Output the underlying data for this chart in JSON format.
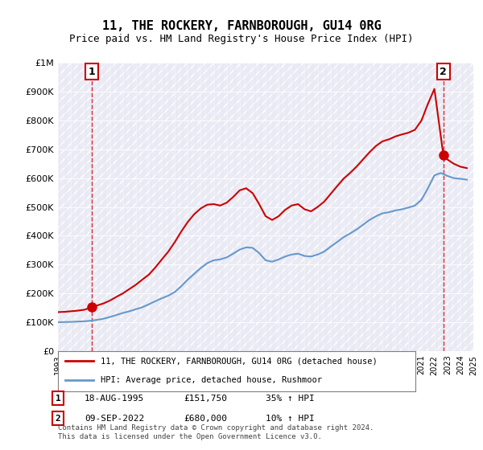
{
  "title": "11, THE ROCKERY, FARNBOROUGH, GU14 0RG",
  "subtitle": "Price paid vs. HM Land Registry's House Price Index (HPI)",
  "legend_line1": "11, THE ROCKERY, FARNBOROUGH, GU14 0RG (detached house)",
  "legend_line2": "HPI: Average price, detached house, Rushmoor",
  "transaction1_label": "1",
  "transaction1_date": "18-AUG-1995",
  "transaction1_price": 151750,
  "transaction1_hpi": "35% ↑ HPI",
  "transaction1_year": 1995.625,
  "transaction2_label": "2",
  "transaction2_date": "09-SEP-2022",
  "transaction2_price": 680000,
  "transaction2_hpi": "10% ↑ HPI",
  "transaction2_year": 2022.69,
  "footer": "Contains HM Land Registry data © Crown copyright and database right 2024.\nThis data is licensed under the Open Government Licence v3.0.",
  "price_color": "#cc0000",
  "hpi_color": "#6699cc",
  "vline_color": "#cc0000",
  "bg_hatch_color": "#e8e8f0",
  "ylim_max": 1000000,
  "xlim_min": 1993,
  "xlim_max": 2025,
  "hpi_data_x": [
    1993,
    1993.5,
    1994,
    1994.5,
    1995,
    1995.5,
    1996,
    1996.5,
    1997,
    1997.5,
    1998,
    1998.5,
    1999,
    1999.5,
    2000,
    2000.5,
    2001,
    2001.5,
    2002,
    2002.5,
    2003,
    2003.5,
    2004,
    2004.5,
    2005,
    2005.5,
    2006,
    2006.5,
    2007,
    2007.5,
    2008,
    2008.5,
    2009,
    2009.5,
    2010,
    2010.5,
    2011,
    2011.5,
    2012,
    2012.5,
    2013,
    2013.5,
    2014,
    2014.5,
    2015,
    2015.5,
    2016,
    2016.5,
    2017,
    2017.5,
    2018,
    2018.5,
    2019,
    2019.5,
    2020,
    2020.5,
    2021,
    2021.5,
    2022,
    2022.5,
    2023,
    2023.5,
    2024,
    2024.5
  ],
  "hpi_data_y": [
    100000,
    100500,
    101000,
    102000,
    103000,
    105000,
    108000,
    112000,
    118000,
    125000,
    132000,
    138000,
    145000,
    152000,
    162000,
    173000,
    183000,
    192000,
    205000,
    225000,
    248000,
    268000,
    288000,
    305000,
    315000,
    318000,
    325000,
    338000,
    352000,
    360000,
    358000,
    340000,
    315000,
    310000,
    318000,
    328000,
    335000,
    338000,
    330000,
    328000,
    335000,
    345000,
    362000,
    378000,
    395000,
    408000,
    422000,
    438000,
    455000,
    468000,
    478000,
    482000,
    488000,
    492000,
    498000,
    505000,
    525000,
    565000,
    610000,
    618000,
    608000,
    600000,
    598000,
    595000
  ],
  "price_data_x": [
    1993,
    1993.5,
    1994,
    1994.5,
    1995,
    1995.625,
    1996,
    1996.5,
    1997,
    1997.5,
    1998,
    1998.5,
    1999,
    1999.5,
    2000,
    2000.5,
    2001,
    2001.5,
    2002,
    2002.5,
    2003,
    2003.5,
    2004,
    2004.5,
    2005,
    2005.5,
    2006,
    2006.5,
    2007,
    2007.5,
    2008,
    2008.5,
    2009,
    2009.5,
    2010,
    2010.5,
    2011,
    2011.5,
    2012,
    2012.5,
    2013,
    2013.5,
    2014,
    2014.5,
    2015,
    2015.5,
    2016,
    2016.5,
    2017,
    2017.5,
    2018,
    2018.5,
    2019,
    2019.5,
    2020,
    2020.5,
    2021,
    2021.5,
    2022,
    2022.69,
    2023,
    2023.5,
    2024,
    2024.5
  ],
  "price_data_y": [
    135000,
    136000,
    138000,
    140000,
    143000,
    151750,
    158000,
    165000,
    175000,
    188000,
    200000,
    215000,
    230000,
    248000,
    265000,
    290000,
    318000,
    345000,
    378000,
    415000,
    448000,
    475000,
    495000,
    508000,
    510000,
    505000,
    515000,
    535000,
    558000,
    565000,
    548000,
    510000,
    468000,
    455000,
    468000,
    490000,
    505000,
    510000,
    492000,
    485000,
    500000,
    518000,
    545000,
    572000,
    598000,
    618000,
    640000,
    665000,
    690000,
    712000,
    728000,
    735000,
    745000,
    752000,
    758000,
    768000,
    800000,
    858000,
    910000,
    680000,
    665000,
    650000,
    640000,
    635000
  ]
}
